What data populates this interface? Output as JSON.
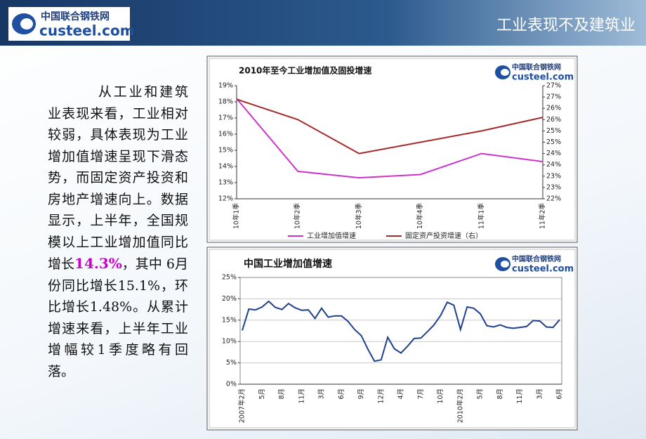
{
  "header": {
    "title": "工业表现不及建筑业"
  },
  "logo": {
    "name": "中国联合钢铁网",
    "domain": "custeel.com"
  },
  "body": {
    "text_before": "从工业和建筑业表现来看，工业相对较弱，具体表现为工业增加值增速呈现下滑态势，而固定资产投资和房地产增速向上。数据显示，上半年，全国规模以上工业增加值同比增长",
    "highlight": "14.3%",
    "text_after": "，其中 6月份同比增长15.1%，环比增长1.48%。从累计增速来看，上半年工业增幅较1季度略有回落。"
  },
  "chart_data": [
    {
      "type": "line",
      "title": "2010年至今工业增加值及固投增速",
      "categories": [
        "10年1季",
        "10年2季",
        "10年3季",
        "10年4季",
        "11年1季",
        "11年2季"
      ],
      "series": [
        {
          "name": "工业增加值增速",
          "color": "#cc33cc",
          "values": [
            18.2,
            13.7,
            13.3,
            13.5,
            14.8,
            14.3
          ]
        },
        {
          "name": "固定资产投资增速（右）",
          "color": "#a52a2a",
          "axis": "y2",
          "values": [
            26.4,
            25.5,
            24.0,
            24.5,
            25.0,
            25.6
          ]
        }
      ],
      "ylim": [
        12,
        19
      ],
      "yticks": [
        {
          "value": 12,
          "label": "12%"
        },
        {
          "value": 13,
          "label": "13%"
        },
        {
          "value": 14,
          "label": "14%"
        },
        {
          "value": 15,
          "label": "15%"
        },
        {
          "value": 16,
          "label": "16%"
        },
        {
          "value": 17,
          "label": "17%"
        },
        {
          "value": 18,
          "label": "18%"
        },
        {
          "value": 19,
          "label": "19%"
        }
      ],
      "y2lim": [
        22,
        27
      ],
      "y2ticks": [
        {
          "value": 22,
          "label": "22%"
        },
        {
          "value": 22.5,
          "label": "23%"
        },
        {
          "value": 23,
          "label": "23%"
        },
        {
          "value": 23.5,
          "label": "24%"
        },
        {
          "value": 24,
          "label": "24%"
        },
        {
          "value": 24.5,
          "label": "25%"
        },
        {
          "value": 25,
          "label": "25%"
        },
        {
          "value": 25.5,
          "label": "26%"
        },
        {
          "value": 26,
          "label": "26%"
        },
        {
          "value": 26.5,
          "label": "27%"
        },
        {
          "value": 27,
          "label": "27%"
        }
      ],
      "grid": false,
      "legend": "bottom"
    },
    {
      "type": "line",
      "title": "中国工业增加值增速",
      "categories": [
        "2007年2月",
        null,
        null,
        "5月",
        null,
        null,
        "8月",
        null,
        null,
        "11月",
        null,
        null,
        "3月",
        null,
        null,
        "6月",
        null,
        null,
        "9月",
        null,
        null,
        "12月",
        null,
        null,
        "4月",
        null,
        null,
        "7月",
        null,
        null,
        "10月",
        null,
        null,
        "2010年2月",
        null,
        null,
        "5月",
        null,
        null,
        "8月",
        null,
        null,
        "11月",
        null,
        null,
        "3月",
        null,
        null,
        "6月"
      ],
      "series": [
        {
          "color": "#1f3f8f",
          "values": [
            12.6,
            17.6,
            17.4,
            18.1,
            19.4,
            18.0,
            17.5,
            18.9,
            17.9,
            17.3,
            17.4,
            15.4,
            17.8,
            15.7,
            16.0,
            16.0,
            14.7,
            12.8,
            11.4,
            8.2,
            5.4,
            5.7,
            11.0,
            8.3,
            7.3,
            8.9,
            10.7,
            10.8,
            12.3,
            13.9,
            16.1,
            19.2,
            18.5,
            12.8,
            18.1,
            17.8,
            16.5,
            13.7,
            13.4,
            13.9,
            13.3,
            13.1,
            13.3,
            13.5,
            14.9,
            14.8,
            13.4,
            13.3,
            15.1
          ]
        }
      ],
      "ylim": [
        0,
        25
      ],
      "yticks": [
        {
          "value": 0,
          "label": "0%"
        },
        {
          "value": 5,
          "label": "5%"
        },
        {
          "value": 10,
          "label": "10%"
        },
        {
          "value": 15,
          "label": "15%"
        },
        {
          "value": 20,
          "label": "20%"
        },
        {
          "value": 25,
          "label": "25%"
        }
      ],
      "grid": true
    }
  ]
}
